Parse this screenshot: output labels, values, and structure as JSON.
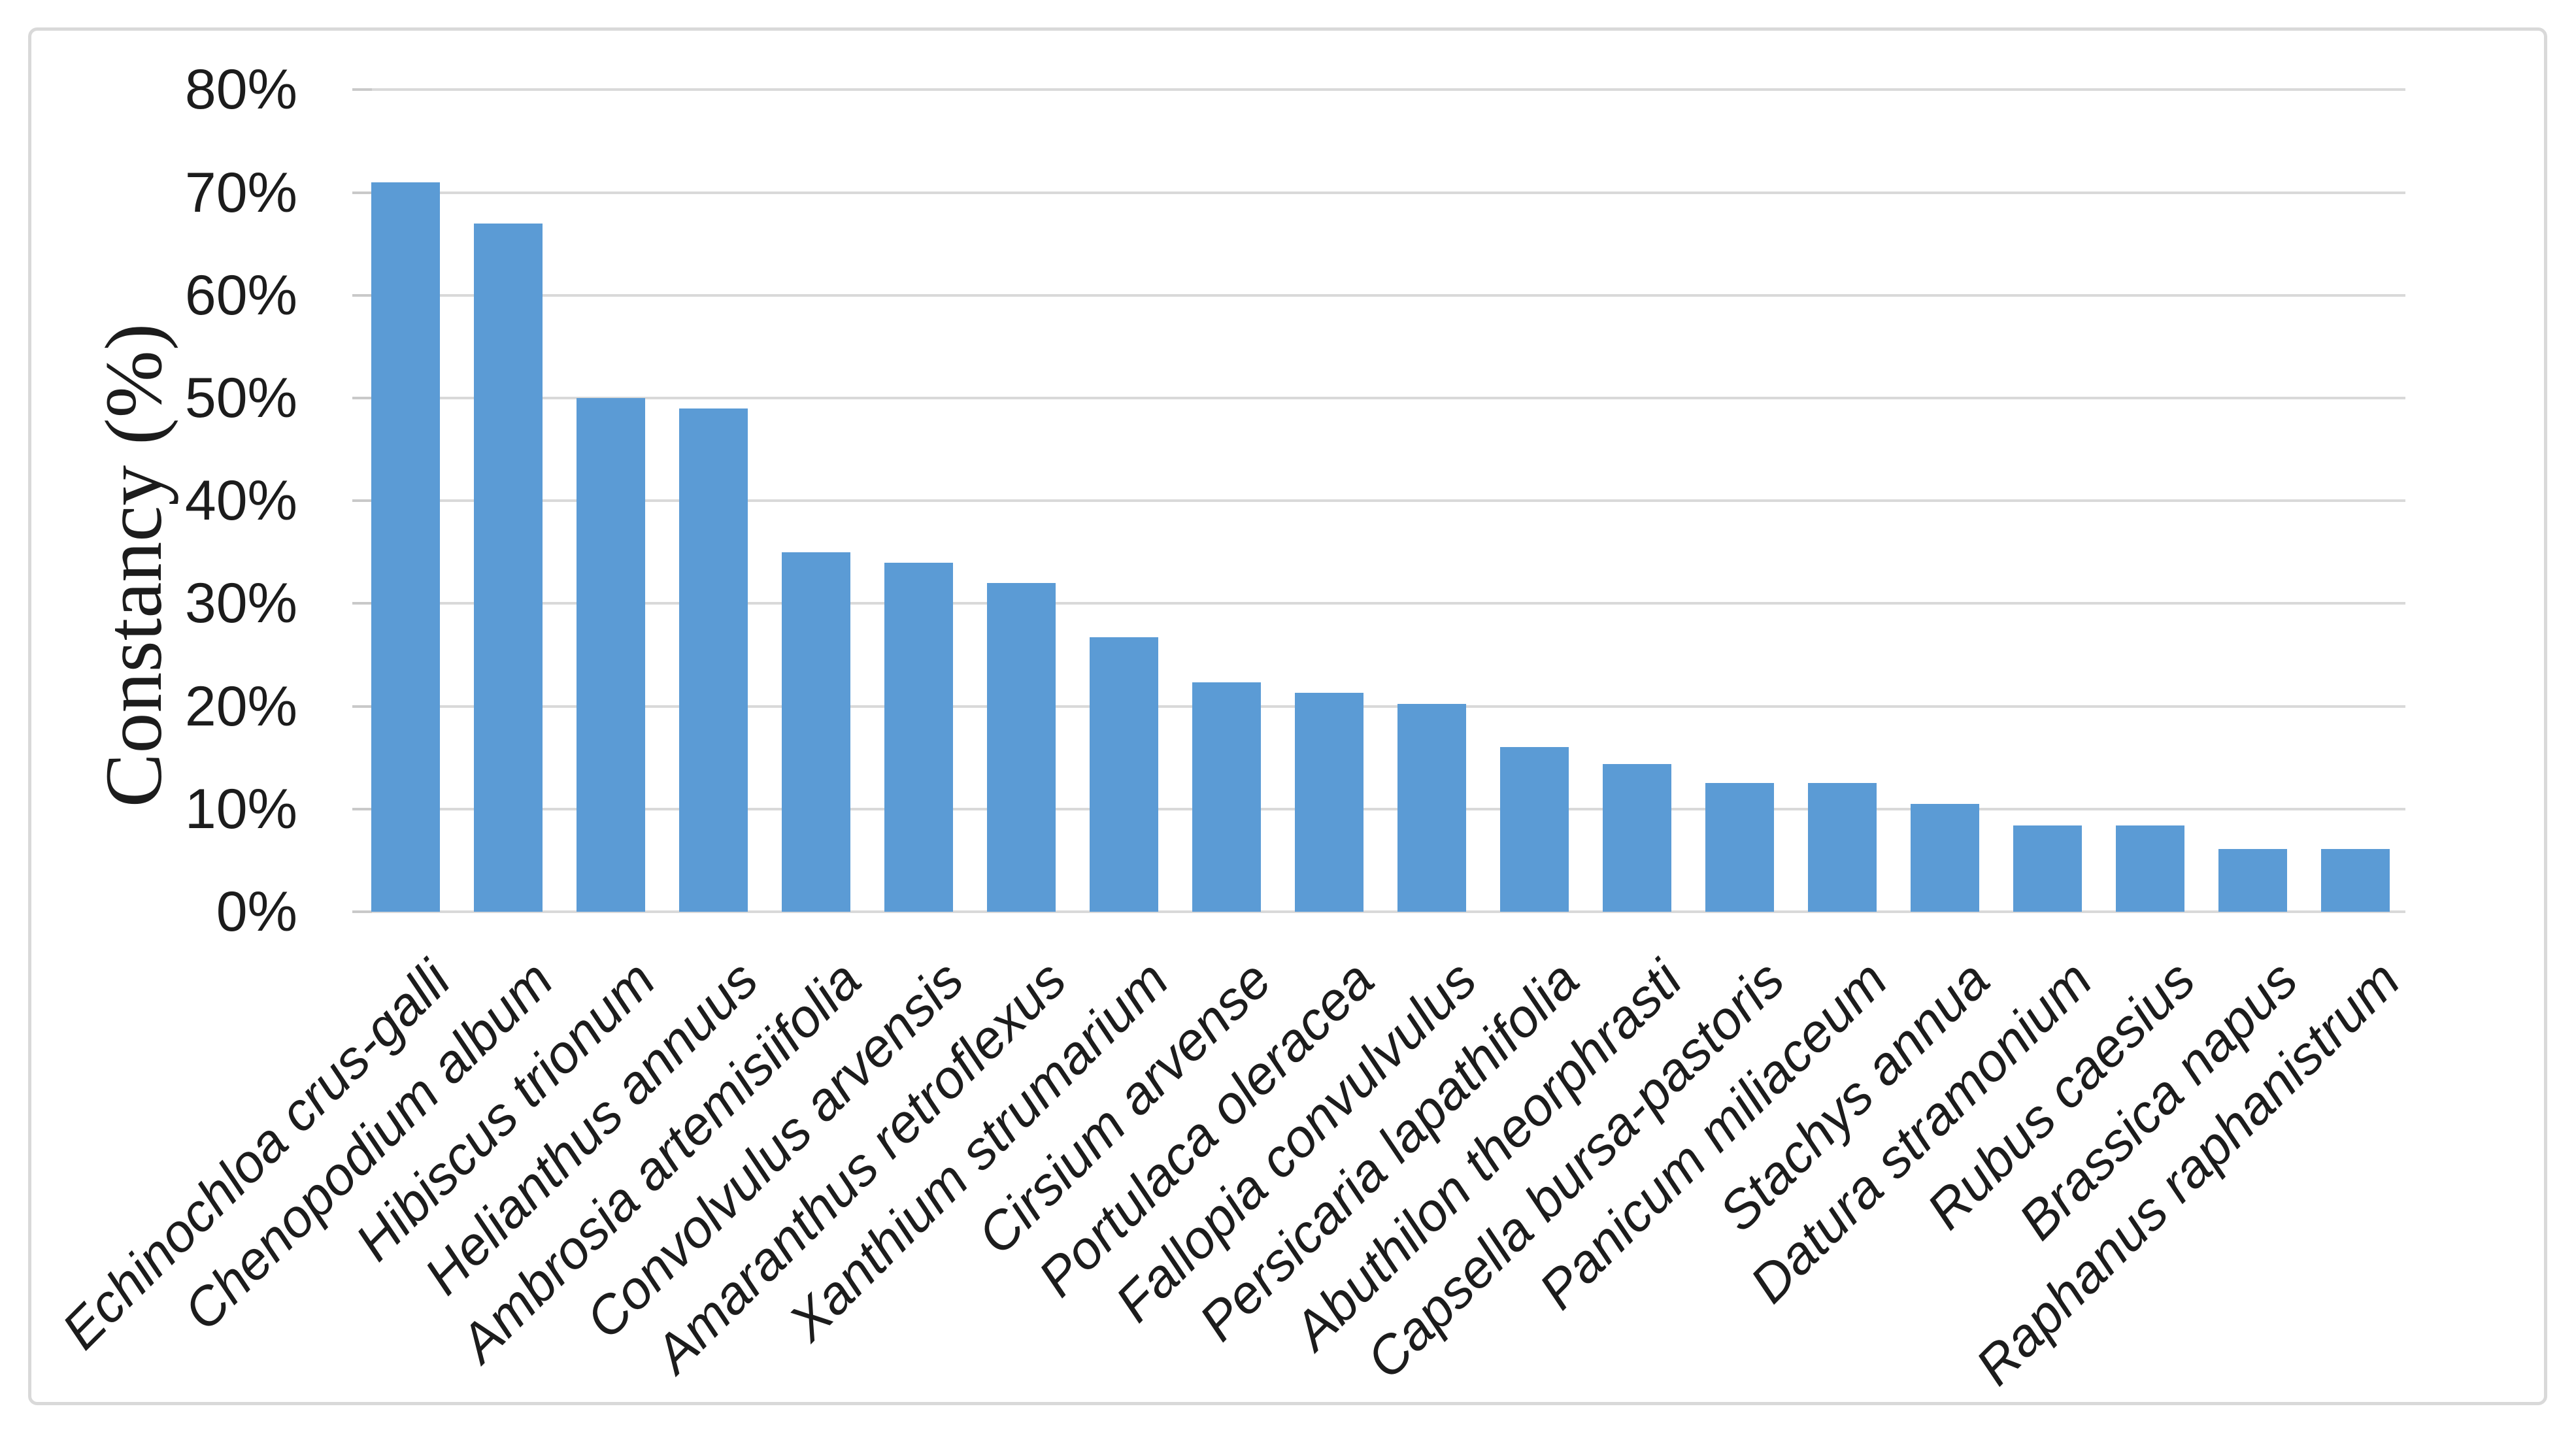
{
  "figure": {
    "kind": "excel-style-column-chart",
    "background": "#ffffff"
  },
  "chart_data": {
    "type": "bar",
    "title": "",
    "xlabel": "",
    "ylabel": "Constancy (%)",
    "categories": [
      "Echinochloa crus-galli",
      "Chenopodium album",
      "Hibiscus trionum",
      "Helianthus annuus",
      "Ambrosia artemisiifolia",
      "Convolvulus arvensis",
      "Amaranthus retroflexus",
      "Xanthium strumarium",
      "Cirsium arvense",
      "Portulaca oleracea",
      "Fallopia convulvulus",
      "Persicaria lapathifolia",
      "Abuthilon theorphrasti",
      "Capsella bursa-pastoris",
      "Panicum miliaceum",
      "Stachys annua",
      "Datura stramonium",
      "Rubus caesius",
      "Brassica napus",
      "Raphanus raphanistrum"
    ],
    "values": [
      71,
      67,
      50,
      49,
      35,
      34,
      32,
      26.7,
      22.3,
      21.3,
      20.2,
      16,
      14.4,
      12.5,
      12.5,
      10.5,
      8.4,
      8.4,
      6.1,
      6.1
    ],
    "unit": "%",
    "ylim": [
      0,
      80
    ],
    "ytick_step": 10,
    "ytick_labels": [
      "0%",
      "10%",
      "20%",
      "30%",
      "40%",
      "50%",
      "60%",
      "70%",
      "80%"
    ],
    "grid": "horizontal",
    "legend_position": "none",
    "category_label_rotation_deg": 45,
    "colors": {
      "bar": "#5B9BD5",
      "gridline": "#D9D9D9",
      "tick": "#C9C9C9",
      "border": "#D9D9D9",
      "text": "#1c1c1c"
    }
  }
}
